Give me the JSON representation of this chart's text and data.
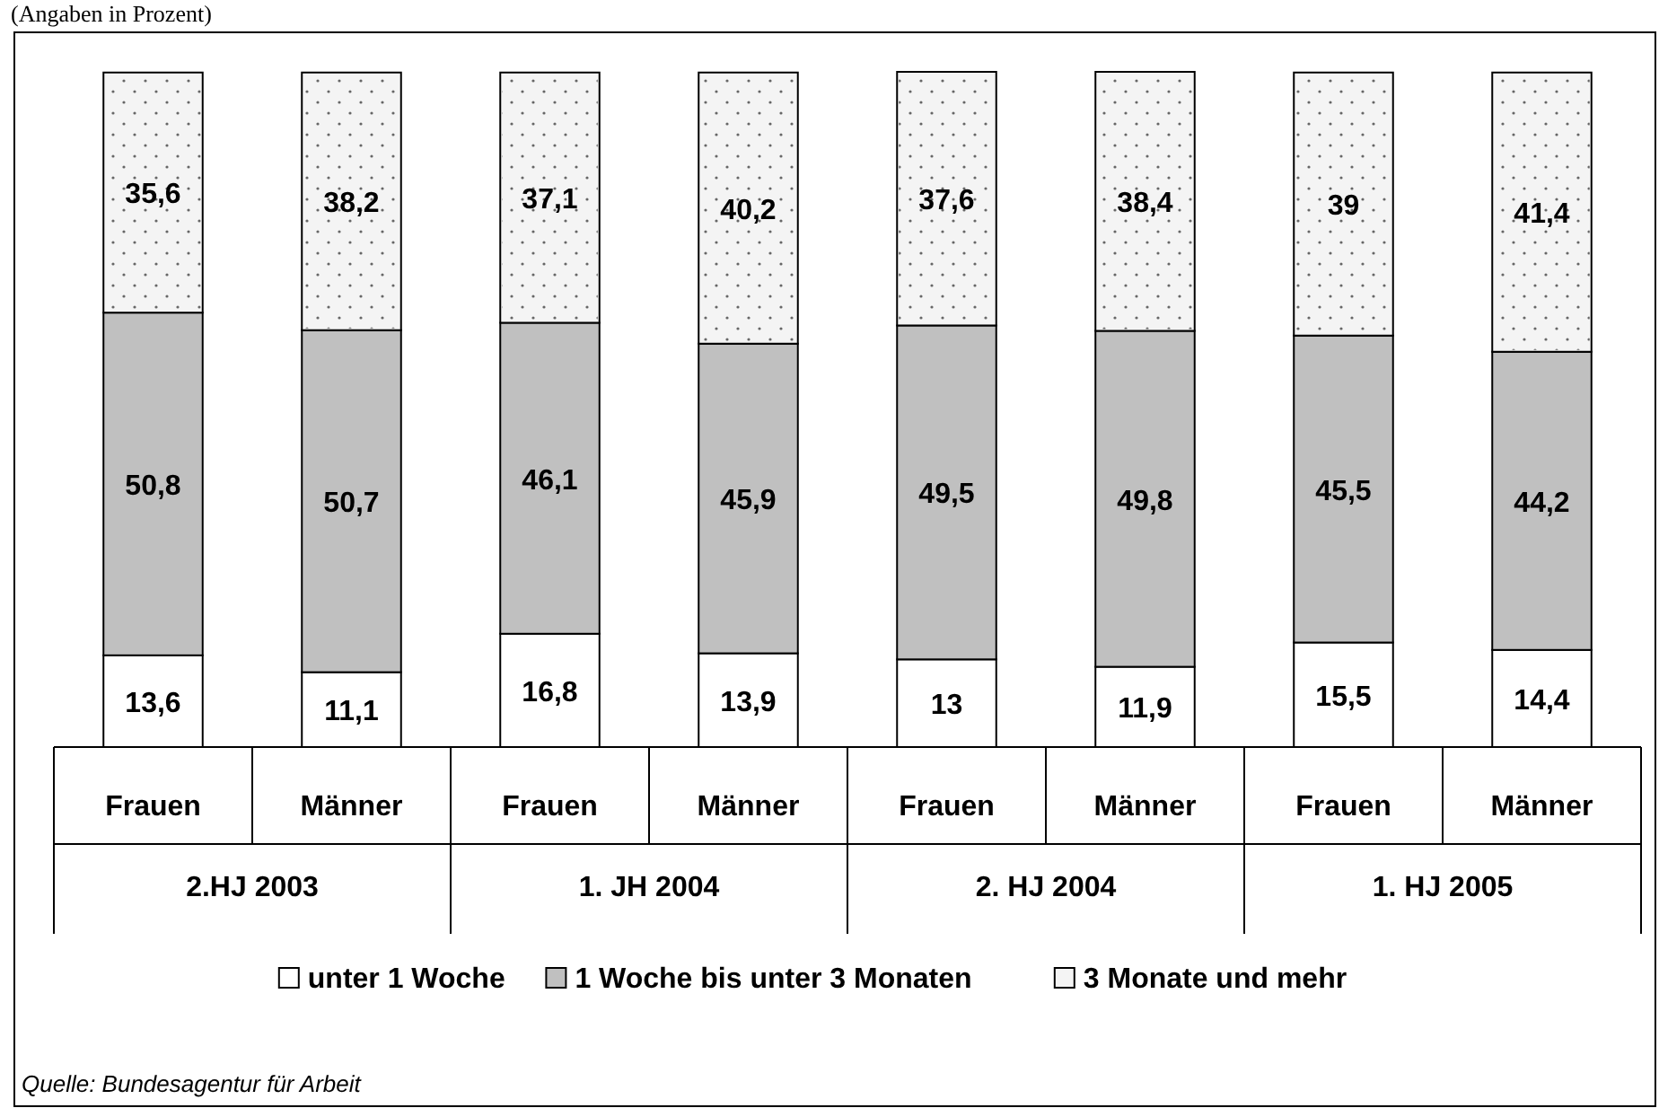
{
  "chart_data": {
    "type": "bar",
    "subtitle": "(Angaben in Prozent)",
    "stacked": true,
    "legend": "bottom",
    "categories": [
      "Frauen",
      "Männer",
      "Frauen",
      "Männer",
      "Frauen",
      "Männer",
      "Frauen",
      "Männer"
    ],
    "series": [
      {
        "name": "unter 1 Woche",
        "color": "#ffffff",
        "values": [
          13.6,
          11.1,
          16.8,
          13.9,
          13,
          11.9,
          15.5,
          14.4
        ],
        "value_labels": [
          "13,6",
          "11,1",
          "16,8",
          "13,9",
          "13",
          "11,9",
          "15,5",
          "14,4"
        ]
      },
      {
        "name": "1 Woche bis unter 3 Monaten",
        "color": "#c0c0c0",
        "values": [
          50.8,
          50.7,
          46.1,
          45.9,
          49.5,
          49.8,
          45.5,
          44.2
        ],
        "value_labels": [
          "50,8",
          "50,7",
          "46,1",
          "45,9",
          "49,5",
          "49,8",
          "45,5",
          "44,2"
        ]
      },
      {
        "name": "3 Monate und mehr",
        "color": "#f4f4f4",
        "values": [
          35.6,
          38.2,
          37.1,
          40.2,
          37.6,
          38.4,
          39,
          41.4
        ],
        "value_labels": [
          "35,6",
          "38,2",
          "37,1",
          "40,2",
          "37,6",
          "38,4",
          "39",
          "41,4"
        ]
      }
    ],
    "annotations": [
      "2.HJ 2003",
      "1. JH 2004",
      "2. HJ 2004",
      "1. HJ 2005",
      "Quelle: Bundesagentur für Arbeit"
    ]
  }
}
